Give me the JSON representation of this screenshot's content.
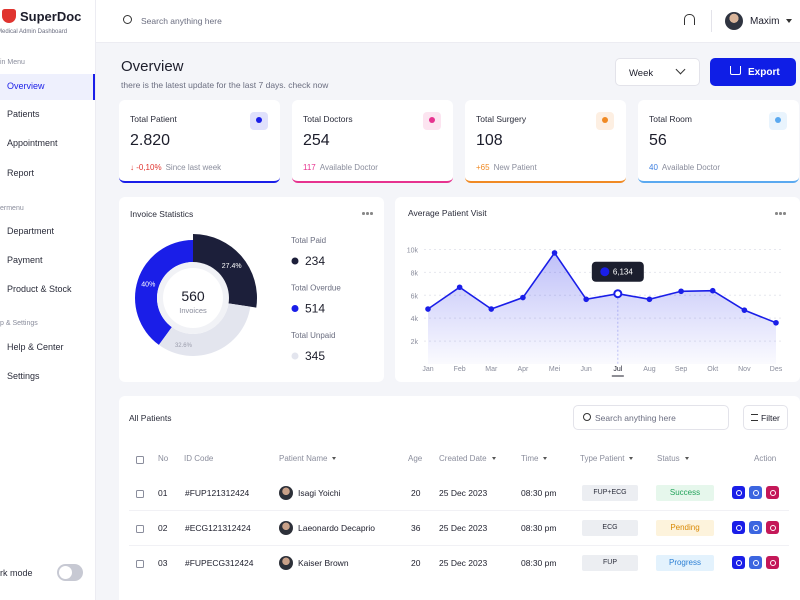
{
  "sidebar": {
    "brand": "SuperDoc",
    "tagline": "Medical Admin Dashboard",
    "sections": [
      {
        "title": "in Menu",
        "items": [
          "Overview",
          "Patients",
          "Appointment",
          "Report"
        ]
      },
      {
        "title": "ermenu",
        "items": [
          "Department",
          "Payment",
          "Product & Stock"
        ]
      },
      {
        "title": "p & Settings",
        "items": [
          "Help & Center",
          "Settings"
        ]
      }
    ],
    "dark_mode": "rk mode"
  },
  "topbar": {
    "search": "Search anything here",
    "user": "Maxim"
  },
  "header": {
    "title": "Overview",
    "subtitle": "there is the latest update for the last 7 days. check now",
    "period": "Week",
    "export": "Export"
  },
  "cards": [
    {
      "title": "Total Patient",
      "value": "2.820",
      "highlight": "↓ -0,10%",
      "note": "Since last week",
      "color": "#1a1ee8",
      "accent": "#e0342f"
    },
    {
      "title": "Total Doctors",
      "value": "254",
      "highlight": "117",
      "note": "Available Doctor",
      "color": "#e6338f",
      "accent": "#e6338f"
    },
    {
      "title": "Total Surgery",
      "value": "108",
      "highlight": "+65",
      "note": "New Patient",
      "color": "#f08a24",
      "accent": "#f08a24"
    },
    {
      "title": "Total Room",
      "value": "56",
      "highlight": "40",
      "note": "Available Doctor",
      "color": "#5aa9f0",
      "accent": "#3d7fe0"
    }
  ],
  "chart_data": [
    {
      "type": "donut",
      "title": "Invoice Statistics",
      "center_value": "560",
      "center_label": "Invoices",
      "values": [
        27.4,
        40,
        32.6
      ],
      "value_labels": [
        "27.4%",
        "40%",
        "32.6%"
      ],
      "colors": [
        "#1c1f3a",
        "#1a1ee8",
        "#e3e5ee"
      ],
      "legend": [
        {
          "label": "Total Paid",
          "value": "234"
        },
        {
          "label": "Total Overdue",
          "value": "514"
        },
        {
          "label": "Total Unpaid",
          "value": "345"
        }
      ]
    },
    {
      "type": "line",
      "title": "Average Patient Visit",
      "categories": [
        "Jan",
        "Feb",
        "Mar",
        "Apr",
        "Mei",
        "Jun",
        "Jul",
        "Aug",
        "Sep",
        "Okt",
        "Nov",
        "Des"
      ],
      "values": [
        4800,
        6700,
        4800,
        5800,
        9700,
        5650,
        6134,
        5650,
        6350,
        6400,
        4700,
        3600
      ],
      "value_labels": [
        null,
        null,
        null,
        null,
        null,
        null,
        "6,134",
        null,
        null,
        null,
        null,
        null
      ],
      "color": "#1a1ee8",
      "ylim": [
        0,
        11000
      ],
      "yticks": [
        {
          "value": 2000,
          "label": "2k"
        },
        {
          "value": 4000,
          "label": "4k"
        },
        {
          "value": 6000,
          "label": "6k"
        },
        {
          "value": 8000,
          "label": "8k"
        },
        {
          "value": 10000,
          "label": "10k"
        }
      ],
      "grid": true
    }
  ],
  "patients": {
    "title": "All Patients",
    "search": "Search anything here",
    "filter": "Filter",
    "columns": [
      "No",
      "ID Code",
      "Patient Name",
      "Age",
      "Created Date",
      "Time",
      "Type Patient",
      "Status",
      "Action"
    ],
    "rows": [
      [
        "01",
        "#FUP121312424",
        "Isagi Yoichi",
        "20",
        "25 Dec 2023",
        "08:30 pm",
        "FUP+ECG",
        "Success"
      ],
      [
        "02",
        "#ECG121312424",
        "Laeonardo Decaprio",
        "36",
        "25 Dec 2023",
        "08:30 pm",
        "ECG",
        "Pending"
      ],
      [
        "03",
        "#FUPECG312424",
        "Kaiser Brown",
        "20",
        "25 Dec 2023",
        "08:30 pm",
        "FUP",
        "Progress"
      ]
    ]
  }
}
